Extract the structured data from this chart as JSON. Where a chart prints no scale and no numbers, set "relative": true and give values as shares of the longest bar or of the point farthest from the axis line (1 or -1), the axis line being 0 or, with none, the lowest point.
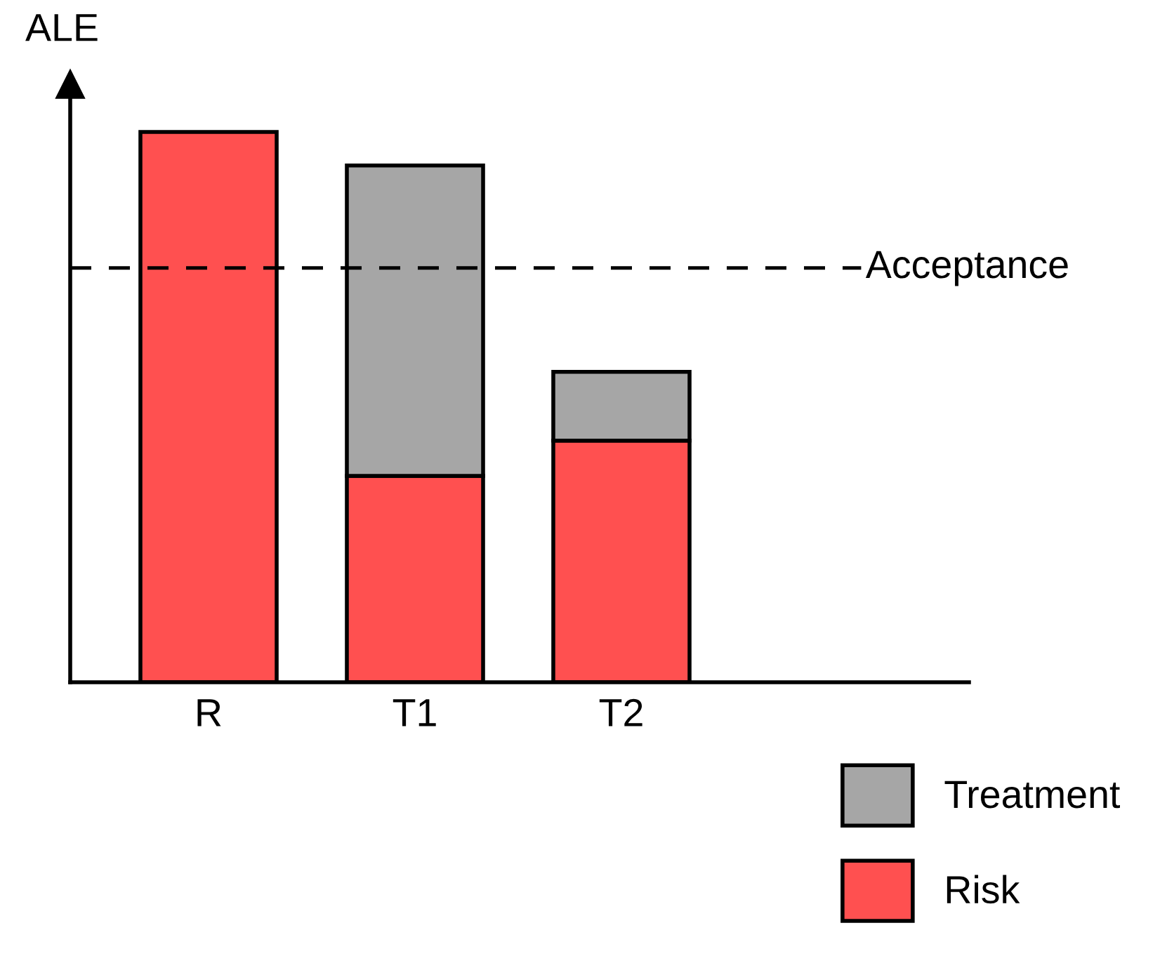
{
  "chart_data": {
    "type": "bar",
    "stacked": true,
    "relative": true,
    "ylabel": "ALE",
    "categories": [
      "R",
      "T1",
      "T2"
    ],
    "series": [
      {
        "name": "Risk",
        "color": "#ff5050",
        "values": [
          1,
          0.375,
          0.439
        ]
      },
      {
        "name": "Treatment",
        "color": "#a6a6a6",
        "values": [
          null,
          0.564,
          0.125
        ]
      }
    ],
    "ref_lines": [
      {
        "axis": "y",
        "value": 0.753,
        "label": "Acceptance",
        "line_style": "dashed",
        "color": "#000000"
      }
    ],
    "legend": "bottom right",
    "grid": false
  }
}
